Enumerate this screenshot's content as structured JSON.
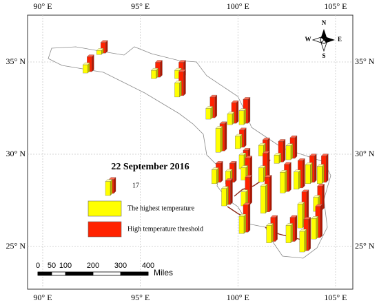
{
  "map": {
    "xticks": [
      {
        "value": 90,
        "label": "90° E"
      },
      {
        "value": 95,
        "label": "95° E"
      },
      {
        "value": 100,
        "label": "100° E"
      },
      {
        "value": 105,
        "label": "105° E"
      }
    ],
    "yticks": [
      {
        "value": 35,
        "label": "35° N"
      },
      {
        "value": 30,
        "label": "30° N"
      },
      {
        "value": 25,
        "label": "25° N"
      }
    ],
    "date": "22 September 2016",
    "legend": {
      "sample": 17,
      "highest": "The highest temperature",
      "threshold": "High temperature threshold"
    },
    "compass": {
      "n": "N",
      "s": "S",
      "e": "E",
      "w": "W"
    },
    "scale_bar": {
      "ticks": [
        0,
        50,
        100,
        200,
        300,
        400
      ],
      "unit": "Miles"
    },
    "stations": [
      {
        "lon": 92.2,
        "lat": 34.4,
        "highest": 10,
        "threshold": 18
      },
      {
        "lon": 92.9,
        "lat": 35.4,
        "highest": 5,
        "threshold": 13
      },
      {
        "lon": 95.7,
        "lat": 34.1,
        "highest": 10,
        "threshold": 18
      },
      {
        "lon": 96.9,
        "lat": 34.1,
        "highest": 10,
        "threshold": 18
      },
      {
        "lon": 96.9,
        "lat": 33.1,
        "highest": 17,
        "threshold": 29
      },
      {
        "lon": 98.5,
        "lat": 31.9,
        "highest": 13,
        "threshold": 25
      },
      {
        "lon": 99.6,
        "lat": 31.6,
        "highest": 13,
        "threshold": 25
      },
      {
        "lon": 100.2,
        "lat": 31.6,
        "highest": 17,
        "threshold": 29
      },
      {
        "lon": 99.0,
        "lat": 30.1,
        "highest": 29,
        "threshold": 33
      },
      {
        "lon": 100.0,
        "lat": 30.3,
        "highest": 15,
        "threshold": 21
      },
      {
        "lon": 101.2,
        "lat": 29.9,
        "highest": 13,
        "threshold": 18
      },
      {
        "lon": 102.0,
        "lat": 29.5,
        "highest": 10,
        "threshold": 25
      },
      {
        "lon": 102.6,
        "lat": 29.7,
        "highest": 17,
        "threshold": 25
      },
      {
        "lon": 100.2,
        "lat": 29.2,
        "highest": 17,
        "threshold": 21
      },
      {
        "lon": 98.8,
        "lat": 28.4,
        "highest": 17,
        "threshold": 23
      },
      {
        "lon": 99.5,
        "lat": 28.4,
        "highest": 15,
        "threshold": 23
      },
      {
        "lon": 100.3,
        "lat": 28.6,
        "highest": 15,
        "threshold": 25
      },
      {
        "lon": 101.2,
        "lat": 28.5,
        "highest": 17,
        "threshold": 33
      },
      {
        "lon": 102.3,
        "lat": 27.9,
        "highest": 25,
        "threshold": 33
      },
      {
        "lon": 103.0,
        "lat": 28.1,
        "highest": 21,
        "threshold": 33
      },
      {
        "lon": 103.6,
        "lat": 28.4,
        "highest": 23,
        "threshold": 32
      },
      {
        "lon": 104.2,
        "lat": 28.4,
        "highest": 21,
        "threshold": 32
      },
      {
        "lon": 99.3,
        "lat": 27.2,
        "highest": 21,
        "threshold": 29
      },
      {
        "lon": 100.3,
        "lat": 27.2,
        "highest": 17,
        "threshold": 33
      },
      {
        "lon": 101.3,
        "lat": 26.8,
        "highest": 33,
        "threshold": 42
      },
      {
        "lon": 104.0,
        "lat": 26.9,
        "highest": 17,
        "threshold": 29
      },
      {
        "lon": 103.2,
        "lat": 26.0,
        "highest": 29,
        "threshold": 42
      },
      {
        "lon": 100.2,
        "lat": 25.7,
        "highest": 21,
        "threshold": 33
      },
      {
        "lon": 101.6,
        "lat": 25.2,
        "highest": 21,
        "threshold": 29
      },
      {
        "lon": 102.6,
        "lat": 25.2,
        "highest": 21,
        "threshold": 29
      },
      {
        "lon": 103.3,
        "lat": 24.7,
        "highest": 25,
        "threshold": 38
      },
      {
        "lon": 103.9,
        "lat": 25.4,
        "highest": 25,
        "threshold": 38
      }
    ]
  }
}
